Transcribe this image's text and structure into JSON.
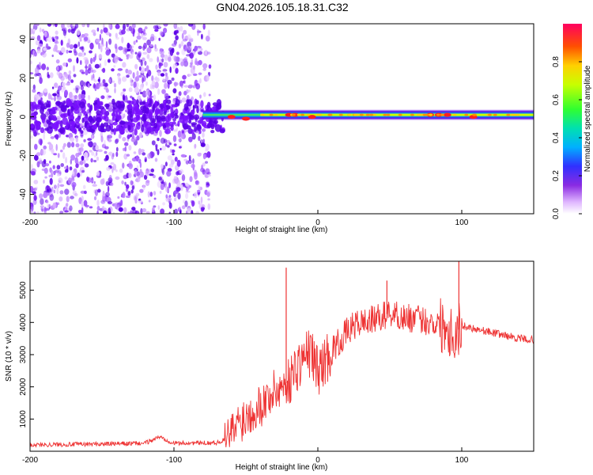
{
  "title": "GN04.2026.105.18.31.C32",
  "chart_data": [
    {
      "type": "heatmap",
      "xlabel": "Height of straight line (km)",
      "ylabel": "Frequency (Hz)",
      "xlim": [
        -200,
        150
      ],
      "ylim": [
        -50,
        48
      ],
      "xticks": [
        -200,
        -100,
        0,
        100
      ],
      "yticks": [
        -40,
        -20,
        0,
        20,
        40
      ],
      "colorbar": {
        "label": "Normalized spectral amplitude",
        "range": [
          0,
          1
        ],
        "ticks": [
          0.0,
          0.2,
          0.4,
          0.6,
          0.8
        ]
      },
      "regions": [
        {
          "name": "broadband noise",
          "x": [
            -200,
            -75
          ],
          "freq_range": [
            -50,
            48
          ],
          "amplitude": 0.15
        },
        {
          "name": "dominant frequency band",
          "x": [
            -75,
            150
          ],
          "center_freq_hz": 1,
          "amplitude_peak": 1.0
        }
      ]
    },
    {
      "type": "line",
      "xlabel": "Height of straight line (km)",
      "ylabel": "SNR (10 * v/v)",
      "xlim": [
        -200,
        150
      ],
      "ylim": [
        0,
        5900
      ],
      "xticks": [
        -200,
        -100,
        0,
        100
      ],
      "yticks": [
        1000,
        2000,
        3000,
        4000,
        5000
      ],
      "series": [
        {
          "name": "SNR",
          "color": "#ee3333",
          "x": [
            -200,
            -180,
            -160,
            -140,
            -120,
            -110,
            -100,
            -80,
            -70,
            -62,
            -55,
            -45,
            -38,
            -32,
            -25,
            -20,
            -15,
            -10,
            -5,
            0,
            5,
            10,
            15,
            20,
            25,
            30,
            40,
            50,
            60,
            70,
            80,
            90,
            95,
            100,
            105,
            110,
            120,
            130,
            140,
            150
          ],
          "y": [
            200,
            210,
            220,
            230,
            250,
            450,
            250,
            260,
            270,
            400,
            900,
            1300,
            1500,
            1800,
            2000,
            2200,
            2600,
            2900,
            3100,
            2500,
            2800,
            3200,
            3400,
            3700,
            3900,
            4000,
            4100,
            4300,
            4150,
            4100,
            4000,
            3900,
            3600,
            3900,
            3850,
            3800,
            3700,
            3600,
            3500,
            3450
          ]
        }
      ],
      "annotations": [
        {
          "x": -22,
          "y": 5700
        },
        {
          "x": 98,
          "y": 5900
        },
        {
          "x": 48,
          "y": 5300
        }
      ]
    }
  ]
}
